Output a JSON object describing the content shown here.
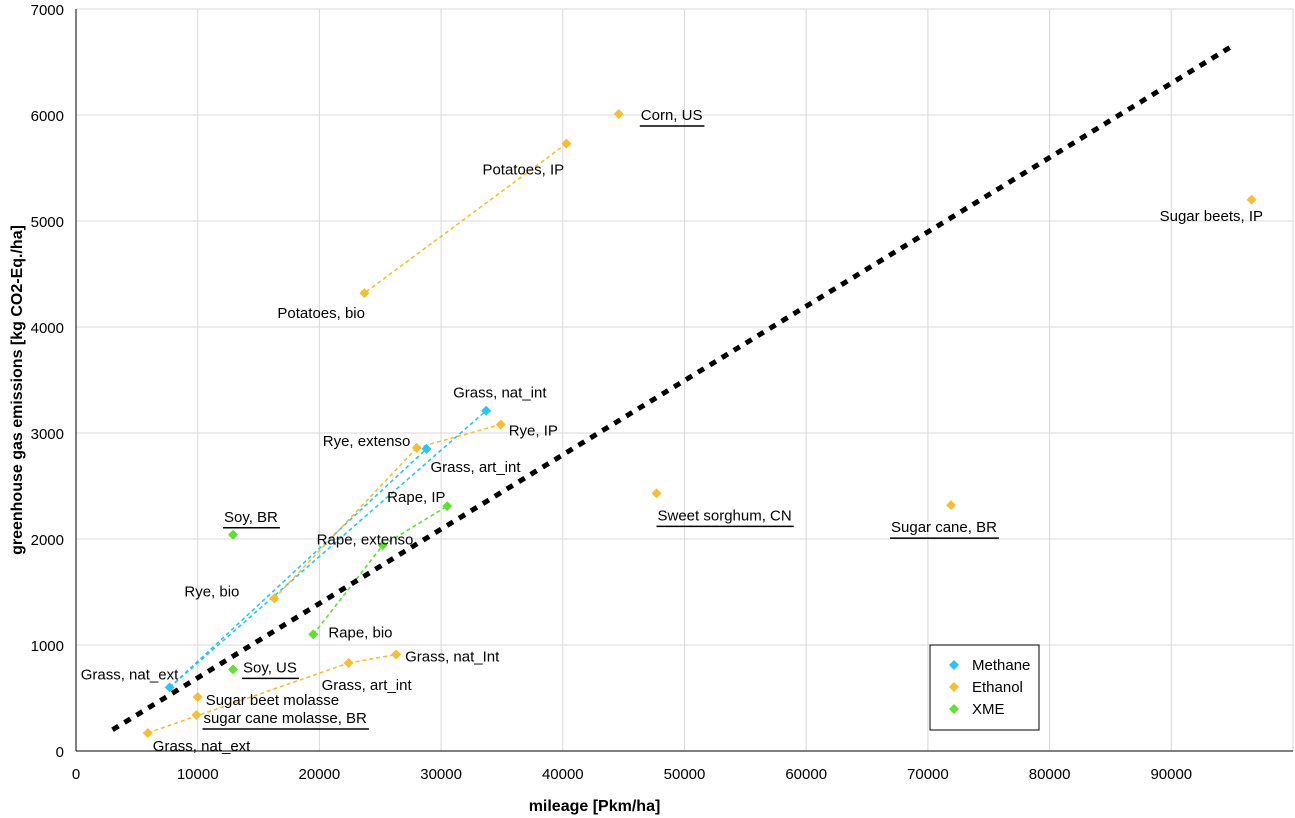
{
  "chart_data": {
    "type": "scatter",
    "title": "",
    "xlabel": "mileage [Pkm/ha]",
    "ylabel": "greenhouse gas emissions [kg CO2-Eq./ha]",
    "xlim": [
      0,
      100000
    ],
    "ylim": [
      0,
      7000
    ],
    "x_ticks": [
      0,
      10000,
      20000,
      30000,
      40000,
      50000,
      60000,
      70000,
      80000,
      90000
    ],
    "y_ticks": [
      0,
      1000,
      2000,
      3000,
      4000,
      5000,
      6000,
      7000
    ],
    "grid": true,
    "legend_position": "bottom-right",
    "colors": {
      "Methane": "#29c5f6",
      "Ethanol": "#f9bd30",
      "XME": "#5ee22c",
      "trend": "#000000",
      "grid": "#d9d9d9"
    },
    "series": [
      {
        "name": "Methane",
        "points": [
          {
            "x": 7700,
            "y": 600,
            "label": "Grass, nat_ext",
            "underline": false
          },
          {
            "x": 28800,
            "y": 2850,
            "label": "Grass, art_int",
            "underline": false
          },
          {
            "x": 33700,
            "y": 3210,
            "label": "Grass, nat_int",
            "underline": false
          }
        ],
        "connectors": [
          [
            0,
            1
          ],
          [
            0,
            2
          ]
        ]
      },
      {
        "name": "Ethanol",
        "points": [
          {
            "x": 44600,
            "y": 6010,
            "label": "Corn, US",
            "underline": true
          },
          {
            "x": 40300,
            "y": 5730,
            "label": "Potatoes, IP",
            "underline": false
          },
          {
            "x": 23700,
            "y": 4320,
            "label": "Potatoes, bio",
            "underline": false
          },
          {
            "x": 96600,
            "y": 5200,
            "label": "Sugar beets, IP",
            "underline": false
          },
          {
            "x": 34900,
            "y": 3080,
            "label": "Rye, IP",
            "underline": false
          },
          {
            "x": 28000,
            "y": 2860,
            "label": "Rye, extenso",
            "underline": false
          },
          {
            "x": 16300,
            "y": 1440,
            "label": "Rye, bio",
            "underline": false
          },
          {
            "x": 47700,
            "y": 2430,
            "label": "Sweet sorghum, CN",
            "underline": true
          },
          {
            "x": 71900,
            "y": 2320,
            "label": "Sugar cane, BR",
            "underline": true
          },
          {
            "x": 26300,
            "y": 910,
            "label": "Grass, nat_Int",
            "underline": false
          },
          {
            "x": 22400,
            "y": 830,
            "label": "Grass, art_int",
            "underline": false
          },
          {
            "x": 5900,
            "y": 170,
            "label": "Grass, nat_ext",
            "underline": false
          },
          {
            "x": 10000,
            "y": 510,
            "label": "Sugar beet molasse",
            "underline": false
          },
          {
            "x": 9900,
            "y": 340,
            "label": "sugar cane molasse, BR",
            "underline": true
          }
        ],
        "connectors": [
          [
            1,
            2
          ],
          [
            6,
            5
          ],
          [
            5,
            4
          ],
          [
            11,
            10
          ],
          [
            10,
            9
          ]
        ]
      },
      {
        "name": "XME",
        "points": [
          {
            "x": 12900,
            "y": 2040,
            "label": "Soy, BR",
            "underline": true
          },
          {
            "x": 30500,
            "y": 2310,
            "label": "Rape, IP",
            "underline": false
          },
          {
            "x": 25200,
            "y": 1940,
            "label": "Rape, extenso",
            "underline": false
          },
          {
            "x": 19500,
            "y": 1100,
            "label": "Rape, bio",
            "underline": false
          },
          {
            "x": 12900,
            "y": 770,
            "label": "Soy, US",
            "underline": true
          }
        ],
        "connectors": [
          [
            3,
            2
          ],
          [
            2,
            1
          ]
        ]
      }
    ],
    "trend_line": {
      "x": [
        3000,
        95000
      ],
      "y": [
        200,
        6650
      ]
    }
  }
}
